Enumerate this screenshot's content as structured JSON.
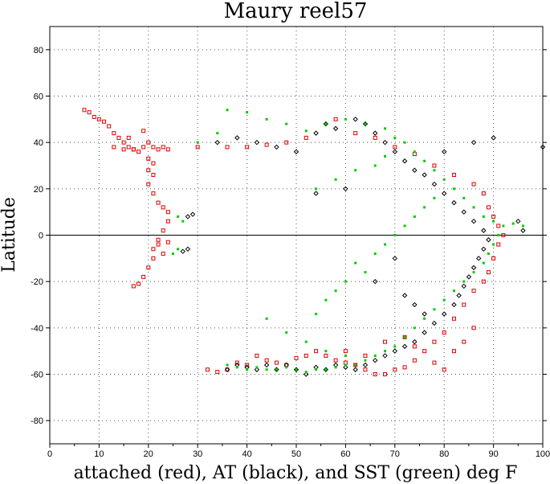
{
  "chart_data": {
    "type": "scatter",
    "title": "Maury reel57",
    "xlabel": "attached (red), AT (black), and SST (green) deg F",
    "ylabel": "Latitude",
    "xlim": [
      0,
      100
    ],
    "ylim": [
      -90,
      90
    ],
    "xticks": [
      0,
      10,
      20,
      30,
      40,
      50,
      60,
      70,
      80,
      90,
      100
    ],
    "yticks": [
      -80,
      -60,
      -40,
      -20,
      0,
      20,
      40,
      60,
      80
    ],
    "grid": true,
    "reference_line_y": 0,
    "series": [
      {
        "color": "#dd0000",
        "marker": "square",
        "values": [
          [
            7,
            54
          ],
          [
            8,
            53
          ],
          [
            9,
            51
          ],
          [
            10,
            50
          ],
          [
            11,
            49
          ],
          [
            12,
            47
          ],
          [
            13,
            44
          ],
          [
            14,
            42
          ],
          [
            15,
            40
          ],
          [
            16,
            38
          ],
          [
            17,
            37
          ],
          [
            18,
            36
          ],
          [
            19,
            38
          ],
          [
            20,
            40
          ],
          [
            21,
            38
          ],
          [
            22,
            37
          ],
          [
            23,
            38
          ],
          [
            24,
            37
          ],
          [
            20,
            33
          ],
          [
            21,
            31
          ],
          [
            20,
            28
          ],
          [
            21,
            26
          ],
          [
            20,
            22
          ],
          [
            21,
            18
          ],
          [
            22,
            14
          ],
          [
            23,
            12
          ],
          [
            24,
            10
          ],
          [
            24,
            6
          ],
          [
            23,
            2
          ],
          [
            22,
            -2
          ],
          [
            21,
            -6
          ],
          [
            21,
            -10
          ],
          [
            20,
            -14
          ],
          [
            19,
            -18
          ],
          [
            18,
            -21
          ],
          [
            17,
            -22
          ],
          [
            22,
            -4
          ],
          [
            23,
            -8
          ],
          [
            24,
            -3
          ],
          [
            17,
            37
          ],
          [
            16,
            42
          ],
          [
            19,
            45
          ],
          [
            15,
            37
          ],
          [
            13,
            38
          ],
          [
            30,
            38
          ],
          [
            36,
            38
          ],
          [
            40,
            38
          ],
          [
            44,
            39
          ],
          [
            48,
            40
          ],
          [
            52,
            42
          ],
          [
            58,
            50
          ],
          [
            62,
            44
          ],
          [
            66,
            42
          ],
          [
            70,
            38
          ],
          [
            74,
            35
          ],
          [
            78,
            30
          ],
          [
            82,
            26
          ],
          [
            86,
            22
          ],
          [
            88,
            18
          ],
          [
            89,
            12
          ],
          [
            90,
            8
          ],
          [
            91,
            4
          ],
          [
            92,
            0
          ],
          [
            91,
            -4
          ],
          [
            90,
            -10
          ],
          [
            89,
            -16
          ],
          [
            88,
            -20
          ],
          [
            86,
            -24
          ],
          [
            84,
            -30
          ],
          [
            82,
            -36
          ],
          [
            80,
            -42
          ],
          [
            78,
            -46
          ],
          [
            76,
            -50
          ],
          [
            74,
            -54
          ],
          [
            72,
            -57
          ],
          [
            70,
            -58
          ],
          [
            68,
            -60
          ],
          [
            66,
            -60
          ],
          [
            64,
            -58
          ],
          [
            62,
            -56
          ],
          [
            60,
            -55
          ],
          [
            58,
            -54
          ],
          [
            56,
            -52
          ],
          [
            54,
            -50
          ],
          [
            52,
            -52
          ],
          [
            50,
            -53
          ],
          [
            48,
            -56
          ],
          [
            46,
            -55
          ],
          [
            44,
            -54
          ],
          [
            42,
            -52
          ],
          [
            40,
            -56
          ],
          [
            38,
            -55
          ],
          [
            36,
            -58
          ],
          [
            34,
            -59
          ],
          [
            32,
            -58
          ],
          [
            78,
            -55
          ],
          [
            80,
            -58
          ],
          [
            82,
            -50
          ],
          [
            84,
            -46
          ],
          [
            86,
            -40
          ],
          [
            74,
            -48
          ],
          [
            72,
            -44
          ],
          [
            68,
            -46
          ],
          [
            64,
            -52
          ],
          [
            60,
            -50
          ]
        ]
      },
      {
        "color": "#000000",
        "marker": "diamond",
        "values": [
          [
            28,
            8
          ],
          [
            29,
            9
          ],
          [
            28,
            -6
          ],
          [
            27,
            -7
          ],
          [
            34,
            40
          ],
          [
            38,
            42
          ],
          [
            42,
            40
          ],
          [
            46,
            38
          ],
          [
            50,
            36
          ],
          [
            54,
            44
          ],
          [
            56,
            48
          ],
          [
            58,
            46
          ],
          [
            62,
            50
          ],
          [
            64,
            48
          ],
          [
            66,
            44
          ],
          [
            68,
            40
          ],
          [
            70,
            36
          ],
          [
            72,
            32
          ],
          [
            74,
            28
          ],
          [
            76,
            26
          ],
          [
            78,
            22
          ],
          [
            80,
            18
          ],
          [
            82,
            14
          ],
          [
            84,
            10
          ],
          [
            86,
            6
          ],
          [
            88,
            2
          ],
          [
            89,
            -2
          ],
          [
            88,
            -6
          ],
          [
            87,
            -10
          ],
          [
            86,
            -14
          ],
          [
            85,
            -18
          ],
          [
            84,
            -22
          ],
          [
            83,
            -26
          ],
          [
            82,
            -30
          ],
          [
            80,
            -34
          ],
          [
            78,
            -38
          ],
          [
            76,
            -42
          ],
          [
            74,
            -46
          ],
          [
            72,
            -48
          ],
          [
            70,
            -50
          ],
          [
            68,
            -52
          ],
          [
            66,
            -54
          ],
          [
            64,
            -56
          ],
          [
            62,
            -58
          ],
          [
            60,
            -57
          ],
          [
            58,
            -56
          ],
          [
            56,
            -58
          ],
          [
            54,
            -57
          ],
          [
            52,
            -60
          ],
          [
            50,
            -58
          ],
          [
            48,
            -56
          ],
          [
            46,
            -58
          ],
          [
            44,
            -56
          ],
          [
            42,
            -58
          ],
          [
            40,
            -57
          ],
          [
            38,
            -56
          ],
          [
            36,
            -58
          ],
          [
            95,
            6
          ],
          [
            96,
            2
          ],
          [
            100,
            38
          ],
          [
            90,
            42
          ],
          [
            86,
            40
          ],
          [
            80,
            36
          ],
          [
            60,
            20
          ],
          [
            54,
            18
          ],
          [
            66,
            -20
          ],
          [
            70,
            -10
          ],
          [
            72,
            -26
          ],
          [
            74,
            -30
          ],
          [
            76,
            -34
          ]
        ]
      },
      {
        "color": "#00cc00",
        "marker": "dot",
        "values": [
          [
            26,
            8
          ],
          [
            27,
            6
          ],
          [
            26,
            -6
          ],
          [
            25,
            -8
          ],
          [
            30,
            40
          ],
          [
            34,
            44
          ],
          [
            36,
            54
          ],
          [
            40,
            53
          ],
          [
            44,
            50
          ],
          [
            48,
            48
          ],
          [
            52,
            45
          ],
          [
            56,
            48
          ],
          [
            60,
            50
          ],
          [
            64,
            48
          ],
          [
            68,
            46
          ],
          [
            70,
            42
          ],
          [
            72,
            40
          ],
          [
            74,
            36
          ],
          [
            76,
            32
          ],
          [
            78,
            28
          ],
          [
            80,
            24
          ],
          [
            82,
            20
          ],
          [
            84,
            16
          ],
          [
            86,
            12
          ],
          [
            88,
            8
          ],
          [
            90,
            6
          ],
          [
            92,
            4
          ],
          [
            94,
            5
          ],
          [
            96,
            4
          ],
          [
            91,
            0
          ],
          [
            90,
            -4
          ],
          [
            89,
            -8
          ],
          [
            88,
            -12
          ],
          [
            86,
            -16
          ],
          [
            84,
            -20
          ],
          [
            82,
            -24
          ],
          [
            80,
            -28
          ],
          [
            78,
            -32
          ],
          [
            76,
            -36
          ],
          [
            74,
            -40
          ],
          [
            72,
            -44
          ],
          [
            70,
            -48
          ],
          [
            68,
            -50
          ],
          [
            66,
            -52
          ],
          [
            64,
            -54
          ],
          [
            62,
            -56
          ],
          [
            60,
            -56
          ],
          [
            58,
            -57
          ],
          [
            56,
            -58
          ],
          [
            54,
            -58
          ],
          [
            52,
            -59
          ],
          [
            50,
            -58
          ],
          [
            48,
            -57
          ],
          [
            46,
            -58
          ],
          [
            44,
            -58
          ],
          [
            42,
            -57
          ],
          [
            40,
            -58
          ],
          [
            38,
            -57
          ],
          [
            36,
            -56
          ],
          [
            66,
            -8
          ],
          [
            68,
            -4
          ],
          [
            70,
            0
          ],
          [
            72,
            4
          ],
          [
            74,
            8
          ],
          [
            76,
            12
          ],
          [
            78,
            16
          ],
          [
            62,
            -12
          ],
          [
            64,
            -16
          ],
          [
            60,
            -20
          ],
          [
            58,
            -24
          ],
          [
            56,
            -28
          ],
          [
            54,
            -34
          ],
          [
            44,
            -36
          ],
          [
            48,
            -42
          ],
          [
            52,
            -46
          ],
          [
            56,
            -50
          ],
          [
            60,
            -52
          ],
          [
            54,
            20
          ],
          [
            58,
            24
          ],
          [
            62,
            28
          ],
          [
            66,
            30
          ],
          [
            68,
            34
          ]
        ]
      }
    ]
  }
}
